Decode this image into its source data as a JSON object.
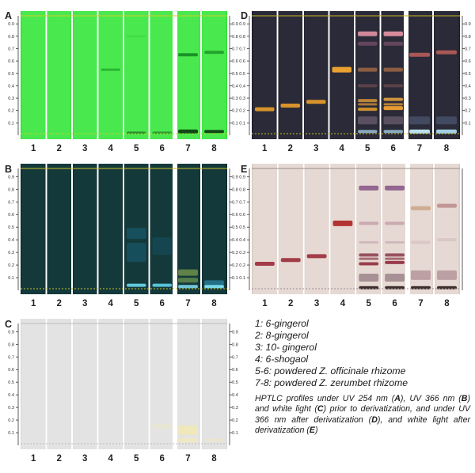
{
  "legend": {
    "items": [
      "1: 6-gingerol",
      "2: 8-gingerol",
      "3: 10- gingerol",
      "4: 6-shogaol",
      "5-6: powdered Z. officinale rhizome",
      "7-8: powdered Z. zerumbet rhizome"
    ],
    "caption_parts": [
      {
        "t": "HPTLC profiles under UV 254 nm (",
        "b": false
      },
      {
        "t": "A",
        "b": true
      },
      {
        "t": "), UV 366 nm (",
        "b": false
      },
      {
        "t": "B",
        "b": true
      },
      {
        "t": ") and white light (",
        "b": false
      },
      {
        "t": "C",
        "b": true
      },
      {
        "t": ") prior to derivatization, and under UV 366 nm after derivatization (",
        "b": false
      },
      {
        "t": "D",
        "b": true
      },
      {
        "t": "), and white light after derivatization (",
        "b": false
      },
      {
        "t": "E",
        "b": true
      },
      {
        "t": ")",
        "b": false
      }
    ]
  },
  "axis_ticks": [
    "0.1",
    "0.2",
    "0.3",
    "0.4",
    "0.5",
    "0.6",
    "0.7",
    "0.8",
    "0.9"
  ],
  "lane_numbers": [
    "1",
    "2",
    "3",
    "4",
    "5",
    "6",
    "7",
    "8"
  ],
  "panels": [
    {
      "letter": "A",
      "plate_color": "#33e33a",
      "lane_color": "#4ae84f",
      "gap_color": "#ffffff",
      "guide_color": "#c9d12a",
      "right_ticks": true,
      "bands": [
        {
          "lane": 4,
          "rf": 0.53,
          "color": "#1c9e2a",
          "opacity": 0.7,
          "h": 3
        },
        {
          "lane": 5,
          "rf": 0.8,
          "color": "#2ec834",
          "opacity": 0.4,
          "h": 2
        },
        {
          "lane": 5,
          "rf": 0.02,
          "color": "#1a6a20",
          "opacity": 0.7,
          "h": 3
        },
        {
          "lane": 6,
          "rf": 0.02,
          "color": "#1a6a20",
          "opacity": 0.6,
          "h": 3
        },
        {
          "lane": 7,
          "rf": 0.65,
          "color": "#158a22",
          "opacity": 0.9,
          "h": 4
        },
        {
          "lane": 7,
          "rf": 0.03,
          "color": "#0b3a10",
          "opacity": 0.9,
          "h": 5
        },
        {
          "lane": 8,
          "rf": 0.67,
          "color": "#1a9426",
          "opacity": 0.8,
          "h": 4
        },
        {
          "lane": 8,
          "rf": 0.03,
          "color": "#0b3a10",
          "opacity": 0.9,
          "h": 4
        }
      ]
    },
    {
      "letter": "B",
      "plate_color": "#0f2a2c",
      "lane_color": "#14393b",
      "gap_color": "#ffffff",
      "guide_color": "#c9c12a",
      "right_ticks": true,
      "bands": [
        {
          "lane": 5,
          "rf": 0.45,
          "color": "#1a6a86",
          "opacity": 0.45,
          "h": 14
        },
        {
          "lane": 5,
          "rf": 0.3,
          "color": "#1c6f8d",
          "opacity": 0.4,
          "h": 24
        },
        {
          "lane": 5,
          "rf": 0.04,
          "color": "#6ad9ef",
          "opacity": 0.9,
          "h": 4
        },
        {
          "lane": 6,
          "rf": 0.35,
          "color": "#165d74",
          "opacity": 0.35,
          "h": 22
        },
        {
          "lane": 6,
          "rf": 0.04,
          "color": "#5fd1e8",
          "opacity": 0.9,
          "h": 4
        },
        {
          "lane": 7,
          "rf": 0.14,
          "color": "#6d8e4b",
          "opacity": 0.85,
          "h": 8
        },
        {
          "lane": 7,
          "rf": 0.08,
          "color": "#5f8b4a",
          "opacity": 0.85,
          "h": 6
        },
        {
          "lane": 7,
          "rf": 0.03,
          "color": "#7bd7ea",
          "opacity": 0.9,
          "h": 4
        },
        {
          "lane": 8,
          "rf": 0.06,
          "color": "#2a86a8",
          "opacity": 0.7,
          "h": 6
        },
        {
          "lane": 8,
          "rf": 0.03,
          "color": "#7ee0f2",
          "opacity": 0.95,
          "h": 4
        }
      ]
    },
    {
      "letter": "C",
      "plate_color": "#dcdcdc",
      "lane_color": "#e3e3e3",
      "gap_color": "#ffffff",
      "guide_color": "#bbbbbb",
      "right_ticks": true,
      "bands": [
        {
          "lane": 6,
          "rf": 0.15,
          "color": "#e9e6c8",
          "opacity": 0.6,
          "h": 6
        },
        {
          "lane": 7,
          "rf": 0.12,
          "color": "#efe8b6",
          "opacity": 0.9,
          "h": 12
        },
        {
          "lane": 7,
          "rf": 0.04,
          "color": "#f0e9bd",
          "opacity": 0.8,
          "h": 6
        },
        {
          "lane": 8,
          "rf": 0.04,
          "color": "#ece7c4",
          "opacity": 0.6,
          "h": 4
        }
      ]
    },
    {
      "letter": "D",
      "plate_color": "#1f1e29",
      "lane_color": "#2b2a38",
      "gap_color": "#ffffff",
      "guide_color": "#c7b72a",
      "right_ticks": true,
      "bands": [
        {
          "lane": 1,
          "rf": 0.21,
          "color": "#e09a2a",
          "opacity": 0.95,
          "h": 5
        },
        {
          "lane": 2,
          "rf": 0.24,
          "color": "#e09a2a",
          "opacity": 0.95,
          "h": 5
        },
        {
          "lane": 3,
          "rf": 0.27,
          "color": "#e09a2a",
          "opacity": 0.95,
          "h": 5
        },
        {
          "lane": 4,
          "rf": 0.53,
          "color": "#eea432",
          "opacity": 0.98,
          "h": 7
        },
        {
          "lane": 5,
          "rf": 0.82,
          "color": "#d98c9c",
          "opacity": 0.95,
          "h": 6
        },
        {
          "lane": 5,
          "rf": 0.74,
          "color": "#8a5a74",
          "opacity": 0.6,
          "h": 5
        },
        {
          "lane": 5,
          "rf": 0.53,
          "color": "#c07a4a",
          "opacity": 0.65,
          "h": 5
        },
        {
          "lane": 5,
          "rf": 0.4,
          "color": "#8a5a5a",
          "opacity": 0.5,
          "h": 4
        },
        {
          "lane": 5,
          "rf": 0.28,
          "color": "#d0943a",
          "opacity": 0.85,
          "h": 4
        },
        {
          "lane": 5,
          "rf": 0.25,
          "color": "#c8883a",
          "opacity": 0.8,
          "h": 3
        },
        {
          "lane": 5,
          "rf": 0.21,
          "color": "#e09a2a",
          "opacity": 0.9,
          "h": 4
        },
        {
          "lane": 5,
          "rf": 0.12,
          "color": "#7a6a7a",
          "opacity": 0.6,
          "h": 10
        },
        {
          "lane": 5,
          "rf": 0.03,
          "color": "#a0c8e0",
          "opacity": 0.8,
          "h": 4
        },
        {
          "lane": 6,
          "rf": 0.82,
          "color": "#e08fa0",
          "opacity": 0.95,
          "h": 6
        },
        {
          "lane": 6,
          "rf": 0.74,
          "color": "#8a5a74",
          "opacity": 0.6,
          "h": 5
        },
        {
          "lane": 6,
          "rf": 0.53,
          "color": "#c07a4a",
          "opacity": 0.65,
          "h": 5
        },
        {
          "lane": 6,
          "rf": 0.4,
          "color": "#8a5a5a",
          "opacity": 0.5,
          "h": 4
        },
        {
          "lane": 6,
          "rf": 0.29,
          "color": "#e0a040",
          "opacity": 0.9,
          "h": 4
        },
        {
          "lane": 6,
          "rf": 0.25,
          "color": "#d0903a",
          "opacity": 0.85,
          "h": 3
        },
        {
          "lane": 6,
          "rf": 0.22,
          "color": "#f0a030",
          "opacity": 0.95,
          "h": 5
        },
        {
          "lane": 6,
          "rf": 0.12,
          "color": "#7a6a7a",
          "opacity": 0.6,
          "h": 10
        },
        {
          "lane": 6,
          "rf": 0.03,
          "color": "#a0c8e0",
          "opacity": 0.8,
          "h": 4
        },
        {
          "lane": 7,
          "rf": 0.65,
          "color": "#c0605a",
          "opacity": 0.85,
          "h": 5
        },
        {
          "lane": 7,
          "rf": 0.12,
          "color": "#5a6a8a",
          "opacity": 0.5,
          "h": 10
        },
        {
          "lane": 7,
          "rf": 0.03,
          "color": "#c0e8f4",
          "opacity": 0.95,
          "h": 5
        },
        {
          "lane": 8,
          "rf": 0.67,
          "color": "#c0605a",
          "opacity": 0.85,
          "h": 5
        },
        {
          "lane": 8,
          "rf": 0.12,
          "color": "#5a6a8a",
          "opacity": 0.5,
          "h": 10
        },
        {
          "lane": 8,
          "rf": 0.03,
          "color": "#a8d8ec",
          "opacity": 0.95,
          "h": 5
        }
      ]
    },
    {
      "letter": "E",
      "plate_color": "#d9ccc6",
      "lane_color": "#e6d9d3",
      "gap_color": "#ffffff",
      "guide_color": "#9a8f8a",
      "right_ticks": false,
      "bands": [
        {
          "lane": 1,
          "rf": 0.21,
          "color": "#9a2a3a",
          "opacity": 0.9,
          "h": 5
        },
        {
          "lane": 2,
          "rf": 0.24,
          "color": "#9a2a3a",
          "opacity": 0.9,
          "h": 5
        },
        {
          "lane": 3,
          "rf": 0.27,
          "color": "#9a2a3a",
          "opacity": 0.9,
          "h": 5
        },
        {
          "lane": 4,
          "rf": 0.53,
          "color": "#b02a2a",
          "opacity": 0.95,
          "h": 7
        },
        {
          "lane": 5,
          "rf": 0.81,
          "color": "#8a5a8a",
          "opacity": 0.9,
          "h": 6
        },
        {
          "lane": 5,
          "rf": 0.53,
          "color": "#b07a90",
          "opacity": 0.5,
          "h": 4
        },
        {
          "lane": 5,
          "rf": 0.38,
          "color": "#b08a9a",
          "opacity": 0.4,
          "h": 3
        },
        {
          "lane": 5,
          "rf": 0.28,
          "color": "#8a3a4a",
          "opacity": 0.85,
          "h": 4
        },
        {
          "lane": 5,
          "rf": 0.25,
          "color": "#8a3a4a",
          "opacity": 0.7,
          "h": 3
        },
        {
          "lane": 5,
          "rf": 0.21,
          "color": "#902a3a",
          "opacity": 0.9,
          "h": 4
        },
        {
          "lane": 5,
          "rf": 0.1,
          "color": "#6a4a5a",
          "opacity": 0.5,
          "h": 10
        },
        {
          "lane": 5,
          "rf": 0.02,
          "color": "#2a1a1a",
          "opacity": 0.9,
          "h": 4
        },
        {
          "lane": 6,
          "rf": 0.81,
          "color": "#8a5a8a",
          "opacity": 0.9,
          "h": 6
        },
        {
          "lane": 6,
          "rf": 0.53,
          "color": "#b07a90",
          "opacity": 0.5,
          "h": 4
        },
        {
          "lane": 6,
          "rf": 0.38,
          "color": "#b08a9a",
          "opacity": 0.4,
          "h": 3
        },
        {
          "lane": 6,
          "rf": 0.28,
          "color": "#8a3a4a",
          "opacity": 0.85,
          "h": 4
        },
        {
          "lane": 6,
          "rf": 0.25,
          "color": "#8a3a4a",
          "opacity": 0.7,
          "h": 3
        },
        {
          "lane": 6,
          "rf": 0.22,
          "color": "#902a3a",
          "opacity": 0.9,
          "h": 4
        },
        {
          "lane": 6,
          "rf": 0.1,
          "color": "#6a4a5a",
          "opacity": 0.5,
          "h": 10
        },
        {
          "lane": 6,
          "rf": 0.02,
          "color": "#2a1a1a",
          "opacity": 0.9,
          "h": 4
        },
        {
          "lane": 7,
          "rf": 0.65,
          "color": "#c8a080",
          "opacity": 0.8,
          "h": 5
        },
        {
          "lane": 7,
          "rf": 0.38,
          "color": "#c0a0a8",
          "opacity": 0.3,
          "h": 4
        },
        {
          "lane": 7,
          "rf": 0.12,
          "color": "#8a5a6a",
          "opacity": 0.45,
          "h": 12
        },
        {
          "lane": 7,
          "rf": 0.02,
          "color": "#2a1a1a",
          "opacity": 0.9,
          "h": 4
        },
        {
          "lane": 8,
          "rf": 0.67,
          "color": "#b07a7a",
          "opacity": 0.7,
          "h": 5
        },
        {
          "lane": 8,
          "rf": 0.4,
          "color": "#c0a0a8",
          "opacity": 0.3,
          "h": 4
        },
        {
          "lane": 8,
          "rf": 0.12,
          "color": "#8a5a6a",
          "opacity": 0.45,
          "h": 12
        },
        {
          "lane": 8,
          "rf": 0.02,
          "color": "#2a1a1a",
          "opacity": 0.9,
          "h": 4
        }
      ]
    }
  ]
}
